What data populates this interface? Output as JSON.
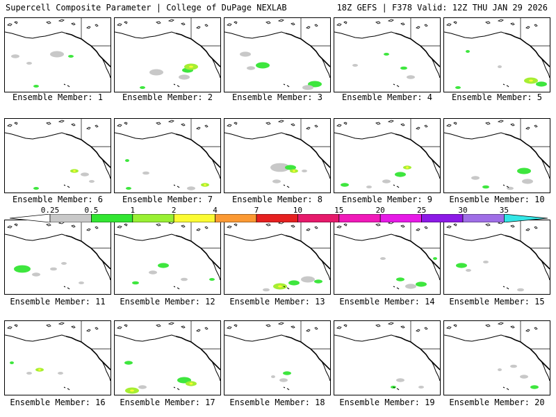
{
  "header": {
    "left": "Supercell Composite Parameter | College of DuPage NEXLAB",
    "right": "18Z GEFS | F378 Valid: 12Z THU JAN 29 2026"
  },
  "members": [
    "Ensemble Member: 1",
    "Ensemble Member: 2",
    "Ensemble Member: 3",
    "Ensemble Member: 4",
    "Ensemble Member: 5",
    "Ensemble Member: 6",
    "Ensemble Member: 7",
    "Ensemble Member: 8",
    "Ensemble Member: 9",
    "Ensemble Member: 10",
    "Ensemble Member: 11",
    "Ensemble Member: 12",
    "Ensemble Member: 13",
    "Ensemble Member: 14",
    "Ensemble Member: 15",
    "Ensemble Member: 16",
    "Ensemble Member: 17",
    "Ensemble Member: 18",
    "Ensemble Member: 19",
    "Ensemble Member: 20"
  ],
  "colorbar": {
    "labels": [
      "0.25",
      "0.5",
      "1",
      "2",
      "4",
      "7",
      "10",
      "15",
      "20",
      "25",
      "30",
      "35"
    ],
    "colors": [
      "#c8c8c8",
      "#33e633",
      "#99f033",
      "#fbfb33",
      "#fb9933",
      "#e62020",
      "#e61a6b",
      "#f01ab9",
      "#e61ae6",
      "#8c1ae6",
      "#9f6ee6",
      "#33e6e6"
    ]
  },
  "palette": {
    "low": "#c8c8c8",
    "mid": "#3ee63e",
    "high": "#a6ee33",
    "peak": "#fbfb33"
  }
}
